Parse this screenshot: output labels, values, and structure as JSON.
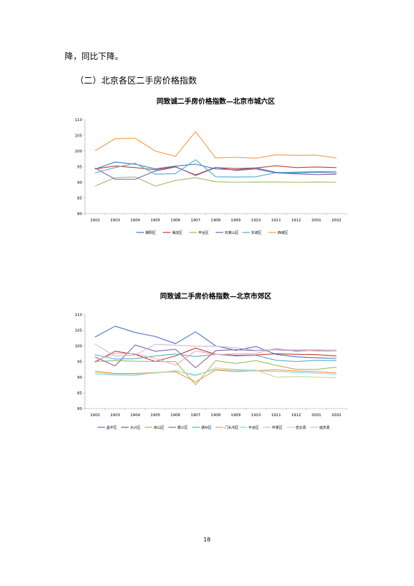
{
  "text": {
    "line1": "降，同比下降。",
    "heading": "（二）北京各区二手房价格指数",
    "page_number": "18"
  },
  "chart_data": [
    {
      "type": "line",
      "title": "同致诚二手房价格指数—北京市城六区",
      "categories": [
        "1902",
        "1903",
        "1904",
        "1905",
        "1906",
        "1907",
        "1908",
        "1909",
        "1910",
        "1911",
        "1912",
        "2001",
        "2002"
      ],
      "ylim": [
        80,
        110
      ],
      "yticks": [
        80,
        85,
        90,
        95,
        100,
        105,
        110
      ],
      "legend_position": "bottom",
      "series": [
        {
          "name": "朝阳区",
          "color": "#4472C4",
          "values": [
            94.2,
            96.5,
            95.8,
            94.3,
            95.2,
            95.8,
            94.3,
            94.0,
            94.6,
            93.2,
            93.0,
            93.2,
            93.0
          ]
        },
        {
          "name": "海淀区",
          "color": "#C0392B",
          "values": [
            94.3,
            95.2,
            94.7,
            94.0,
            95.0,
            92.2,
            94.7,
            94.4,
            94.6,
            95.3,
            94.7,
            94.9,
            94.7
          ]
        },
        {
          "name": "丰台区",
          "color": "#9BBB59",
          "values": [
            88.8,
            91.5,
            91.7,
            88.8,
            90.6,
            91.5,
            90.2,
            90.0,
            90.1,
            90.1,
            90.0,
            90.1,
            90.0
          ]
        },
        {
          "name": "石景山区",
          "color": "#7F5FA8",
          "values": [
            94.6,
            91.0,
            91.0,
            93.6,
            94.9,
            92.4,
            94.8,
            93.8,
            94.3,
            93.0,
            92.7,
            92.5,
            92.6
          ]
        },
        {
          "name": "东城区",
          "color": "#4BACC6",
          "values": [
            93.0,
            94.7,
            96.1,
            92.6,
            92.8,
            97.2,
            91.8,
            91.7,
            91.8,
            93.1,
            93.3,
            93.4,
            93.5
          ]
        },
        {
          "name": "西城区",
          "color": "#F79646",
          "values": [
            100.1,
            103.9,
            104.1,
            100.0,
            98.3,
            106.2,
            97.8,
            98.0,
            97.7,
            98.8,
            98.6,
            98.7,
            97.8
          ]
        }
      ]
    },
    {
      "type": "line",
      "title": "同致诚二手房价格指数—北京市郊区",
      "categories": [
        "1902",
        "1903",
        "1904",
        "1905",
        "1906",
        "1907",
        "1908",
        "1909",
        "1910",
        "1911",
        "1912",
        "2001",
        "2002"
      ],
      "ylim": [
        80,
        110
      ],
      "yticks": [
        80,
        85,
        90,
        95,
        100,
        105,
        110
      ],
      "legend_position": "bottom",
      "series": [
        {
          "name": "昌平区",
          "color": "#4472C4",
          "values": [
            102.8,
            106.3,
            104.3,
            103.0,
            100.7,
            104.5,
            100.0,
            98.6,
            99.8,
            97.3,
            96.5,
            96.2,
            96.0
          ]
        },
        {
          "name": "大兴区",
          "color": "#C0392B",
          "values": [
            94.8,
            98.3,
            97.3,
            95.0,
            96.8,
            99.3,
            97.3,
            97.0,
            97.1,
            97.5,
            97.3,
            97.2,
            96.8
          ]
        },
        {
          "name": "房山区",
          "color": "#9BBB59",
          "values": [
            95.0,
            95.3,
            95.1,
            95.0,
            95.0,
            87.6,
            95.3,
            94.4,
            95.3,
            93.8,
            92.5,
            92.5,
            93.2
          ]
        },
        {
          "name": "顺义区",
          "color": "#8064A2",
          "values": [
            96.5,
            93.6,
            100.3,
            98.3,
            98.9,
            93.0,
            98.5,
            98.8,
            98.5,
            98.8,
            98.4,
            98.5,
            98.4
          ]
        },
        {
          "name": "通州区",
          "color": "#4BACC6",
          "values": [
            97.2,
            95.8,
            95.9,
            96.8,
            97.4,
            96.6,
            97.3,
            96.8,
            97.0,
            95.4,
            95.0,
            95.4,
            95.3
          ]
        },
        {
          "name": "门头沟区",
          "color": "#F79646",
          "values": [
            91.9,
            91.2,
            91.2,
            91.5,
            91.7,
            88.5,
            92.3,
            91.8,
            92.1,
            92.4,
            92.0,
            91.8,
            91.4
          ]
        },
        {
          "name": "平谷区",
          "color": "#7FD4E6",
          "values": [
            91.0,
            90.7,
            90.6,
            91.5,
            91.9,
            90.8,
            92.5,
            92.2,
            92.0,
            91.9,
            91.6,
            91.3,
            91.0
          ]
        },
        {
          "name": "怀柔区",
          "color": "#F4A6B2",
          "values": [
            95.2,
            97.6,
            97.5,
            96.0,
            93.9,
            98.4,
            97.2,
            97.5,
            97.6,
            99.2,
            98.2,
            98.6,
            98.7
          ]
        },
        {
          "name": "密云县",
          "color": "#C3D69B",
          "values": [
            91.5,
            91.0,
            91.0,
            91.3,
            92.1,
            90.4,
            93.0,
            92.5,
            92.3,
            90.0,
            90.2,
            90.0,
            89.8
          ]
        },
        {
          "name": "延庆县",
          "color": "#C9B7E0",
          "values": [
            100.6,
            96.7,
            97.1,
            100.5,
            100.2,
            99.9,
            99.9,
            99.4,
            98.6,
            98.9,
            98.7,
            98.8,
            98.4
          ]
        }
      ]
    }
  ]
}
